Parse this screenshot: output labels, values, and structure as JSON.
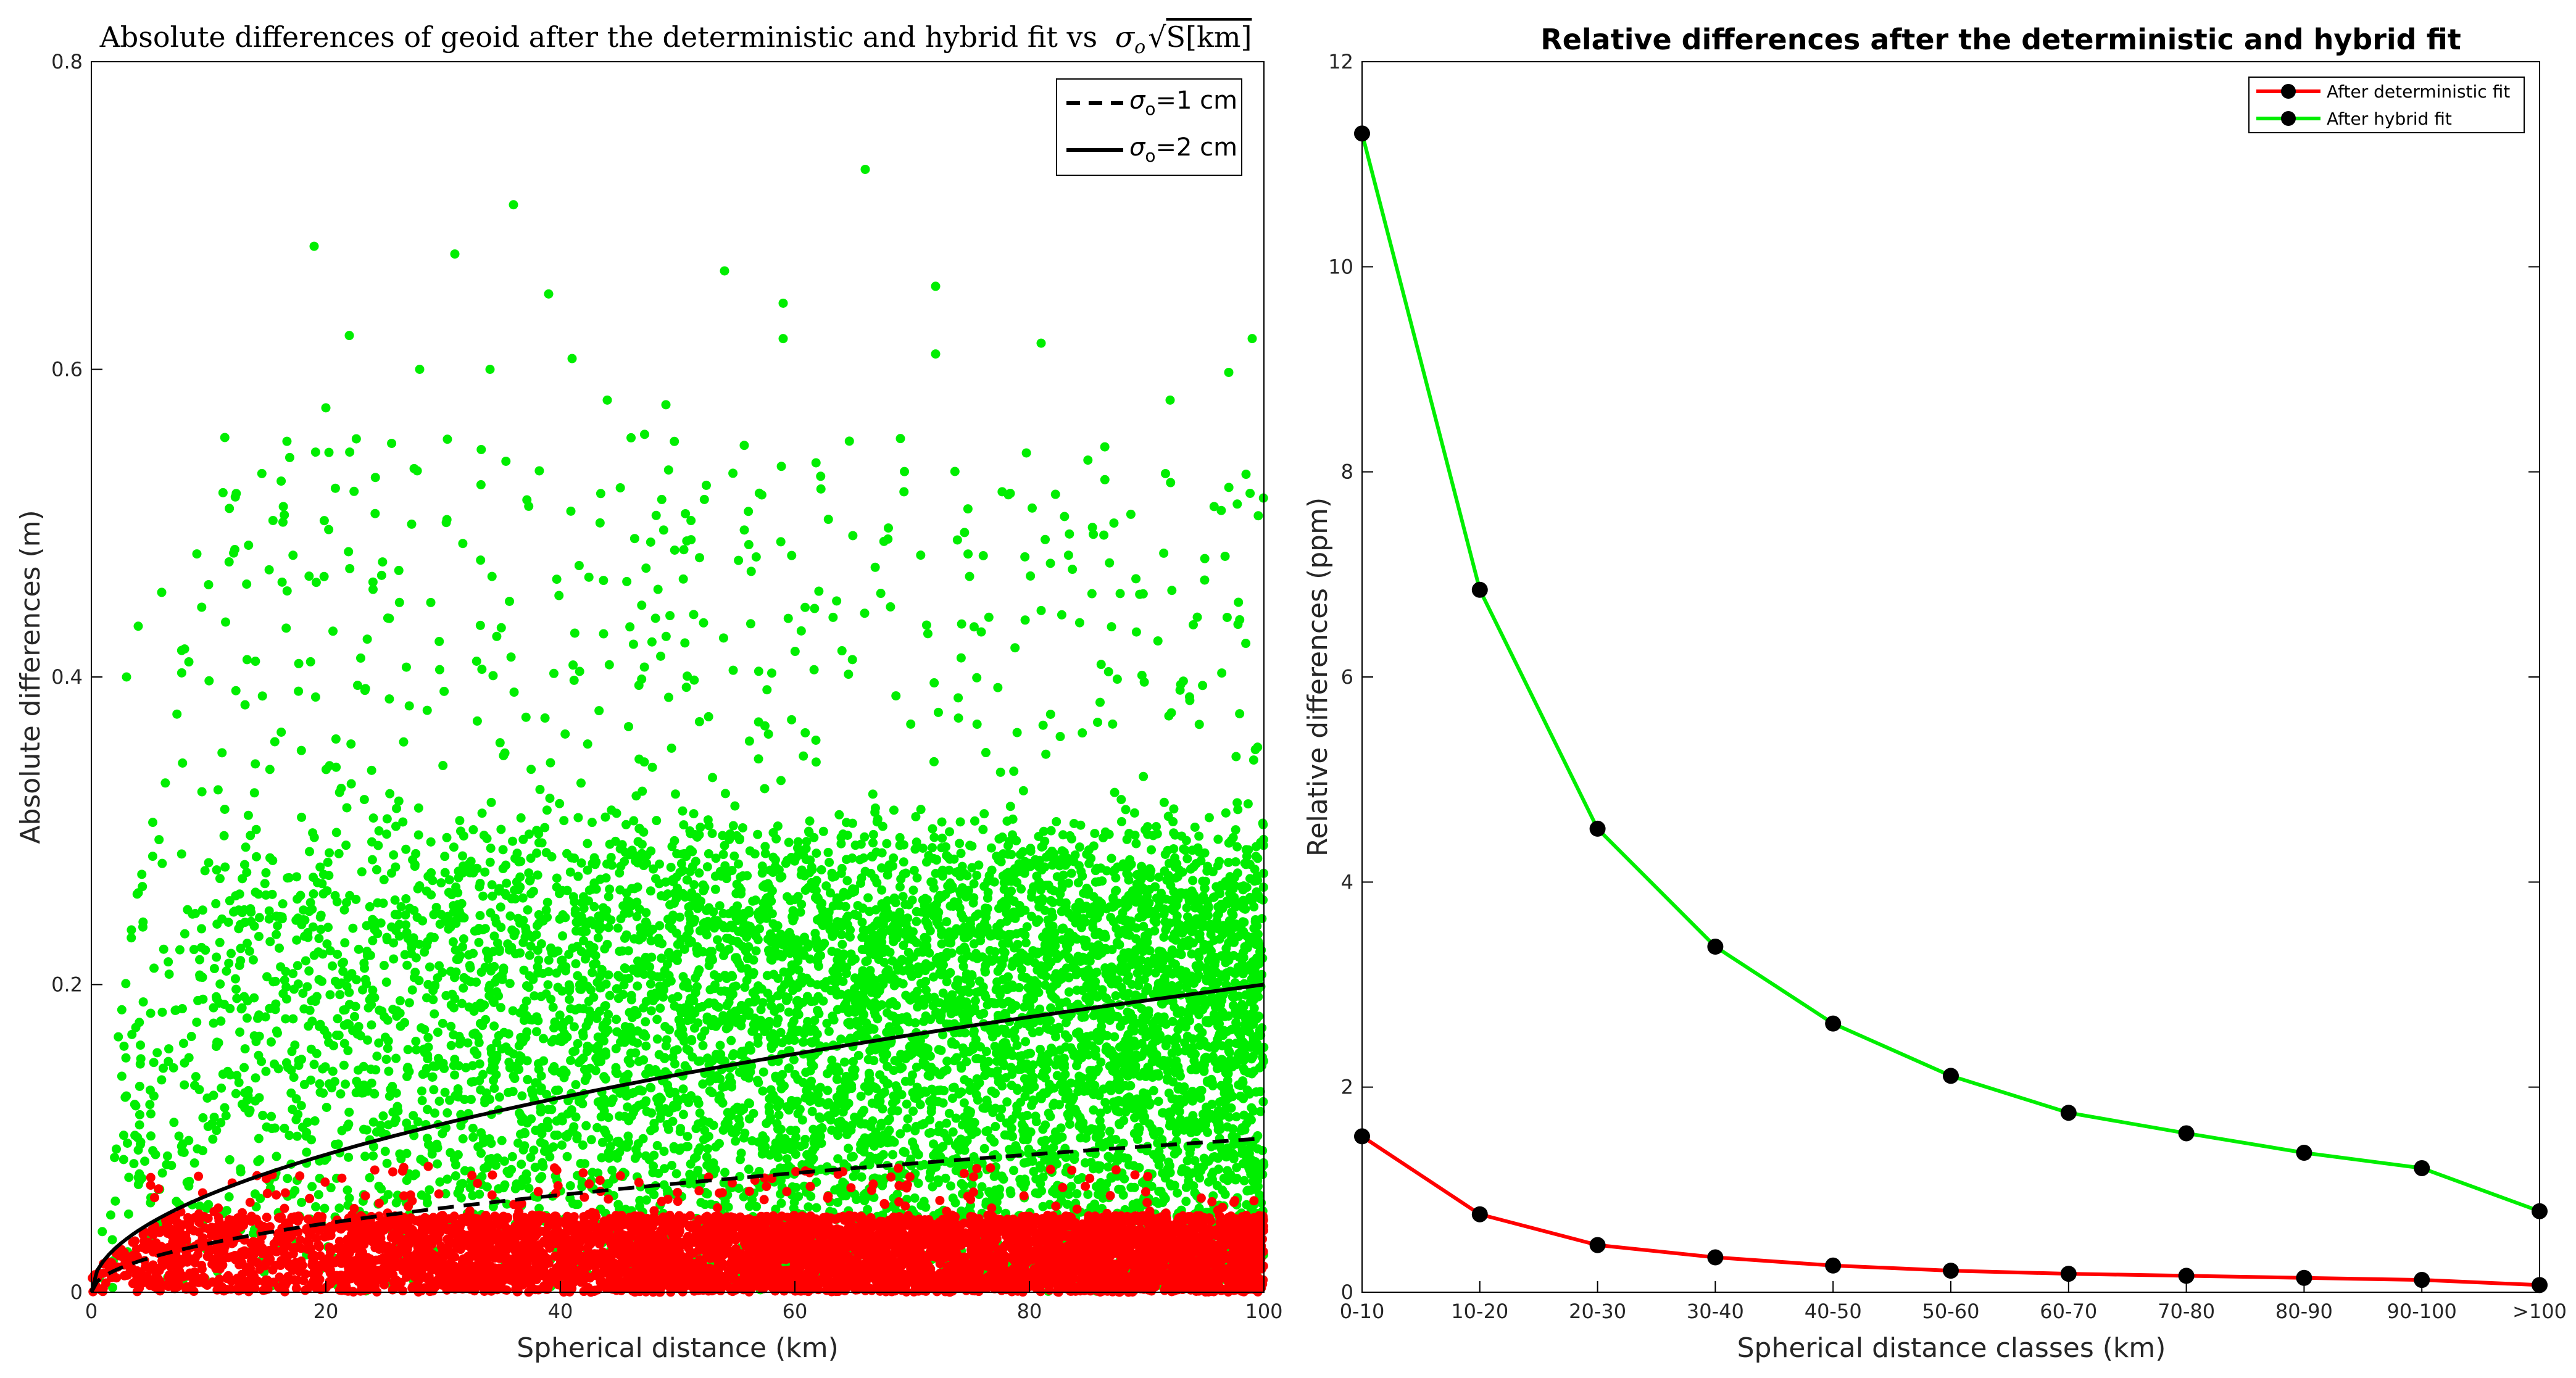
{
  "chart_data": [
    {
      "type": "scatter",
      "title_text": "Absolute differences of geoid after the deterministic and hybrid fit vs",
      "title_math": "σ",
      "title_math_sub": "o",
      "title_root": "√",
      "title_tail": "S[km]",
      "xlabel": "Spherical distance (km)",
      "ylabel": "Absolute differences (m)",
      "xlim": [
        0,
        100
      ],
      "ylim": [
        0,
        0.8
      ],
      "xticks": [
        "0",
        "20",
        "40",
        "60",
        "80",
        "100"
      ],
      "yticks": [
        "0",
        "0.2",
        "0.4",
        "0.6",
        "0.8"
      ],
      "legend_position": "top-right",
      "legend": [
        {
          "sigma": "σ",
          "sub": "o",
          "text": "=1 cm",
          "style": "dashed"
        },
        {
          "sigma": "σ",
          "sub": "o",
          "text": "=2 cm",
          "style": "solid"
        }
      ],
      "lines": [
        {
          "name": "σo=1 cm",
          "sigma_m": 0.01,
          "formula": "sigma*sqrt(S)",
          "style": "dashed",
          "color": "#000000"
        },
        {
          "name": "σo=2 cm",
          "sigma_m": 0.02,
          "formula": "sigma*sqrt(S)",
          "style": "solid",
          "color": "#000000"
        }
      ],
      "series": [
        {
          "name": "After hybrid fit",
          "color": "#00ee00",
          "typical_max_m": 0.32,
          "outlier_max_m": 0.73
        },
        {
          "name": "After deterministic fit",
          "color": "#ff0000",
          "typical_max_m": 0.05,
          "outlier_max_m": 0.09
        }
      ],
      "outliers_hybrid": [
        {
          "x": 19,
          "y": 0.68
        },
        {
          "x": 36,
          "y": 0.707
        },
        {
          "x": 66,
          "y": 0.73
        },
        {
          "x": 31,
          "y": 0.675
        },
        {
          "x": 54,
          "y": 0.664
        },
        {
          "x": 72,
          "y": 0.654
        },
        {
          "x": 22,
          "y": 0.622
        },
        {
          "x": 39,
          "y": 0.649
        },
        {
          "x": 59,
          "y": 0.643
        },
        {
          "x": 41,
          "y": 0.607
        },
        {
          "x": 72,
          "y": 0.61
        },
        {
          "x": 99,
          "y": 0.62
        },
        {
          "x": 20,
          "y": 0.575
        },
        {
          "x": 28,
          "y": 0.6
        },
        {
          "x": 34,
          "y": 0.6
        },
        {
          "x": 44,
          "y": 0.58
        },
        {
          "x": 49,
          "y": 0.577
        },
        {
          "x": 59,
          "y": 0.62
        },
        {
          "x": 81,
          "y": 0.617
        },
        {
          "x": 97,
          "y": 0.598
        },
        {
          "x": 6,
          "y": 0.455
        },
        {
          "x": 10,
          "y": 0.46
        },
        {
          "x": 4,
          "y": 0.433
        },
        {
          "x": 9,
          "y": 0.48
        },
        {
          "x": 3,
          "y": 0.4
        },
        {
          "x": 92,
          "y": 0.58
        },
        {
          "x": 69,
          "y": 0.555
        }
      ]
    },
    {
      "type": "line",
      "title": "Relative differences after the deterministic and hybrid fit",
      "xlabel": "Spherical distance classes (km)",
      "ylabel": "Relative differences (ppm)",
      "ylim": [
        0,
        12
      ],
      "yticks": [
        "0",
        "2",
        "4",
        "6",
        "8",
        "10",
        "12"
      ],
      "legend_position": "top-right",
      "categories": [
        "0-10",
        "10-20",
        "20-30",
        "30-40",
        "40-50",
        "50-60",
        "60-70",
        "70-80",
        "80-90",
        "90-100",
        ">100"
      ],
      "series": [
        {
          "name": "After deterministic fit",
          "color": "#ff0000",
          "values": [
            1.52,
            0.76,
            0.46,
            0.34,
            0.26,
            0.21,
            0.18,
            0.16,
            0.14,
            0.12,
            0.07
          ]
        },
        {
          "name": "After hybrid fit",
          "color": "#00ee00",
          "values": [
            11.3,
            6.85,
            4.52,
            3.37,
            2.62,
            2.11,
            1.75,
            1.55,
            1.36,
            1.21,
            0.79
          ]
        }
      ]
    }
  ]
}
